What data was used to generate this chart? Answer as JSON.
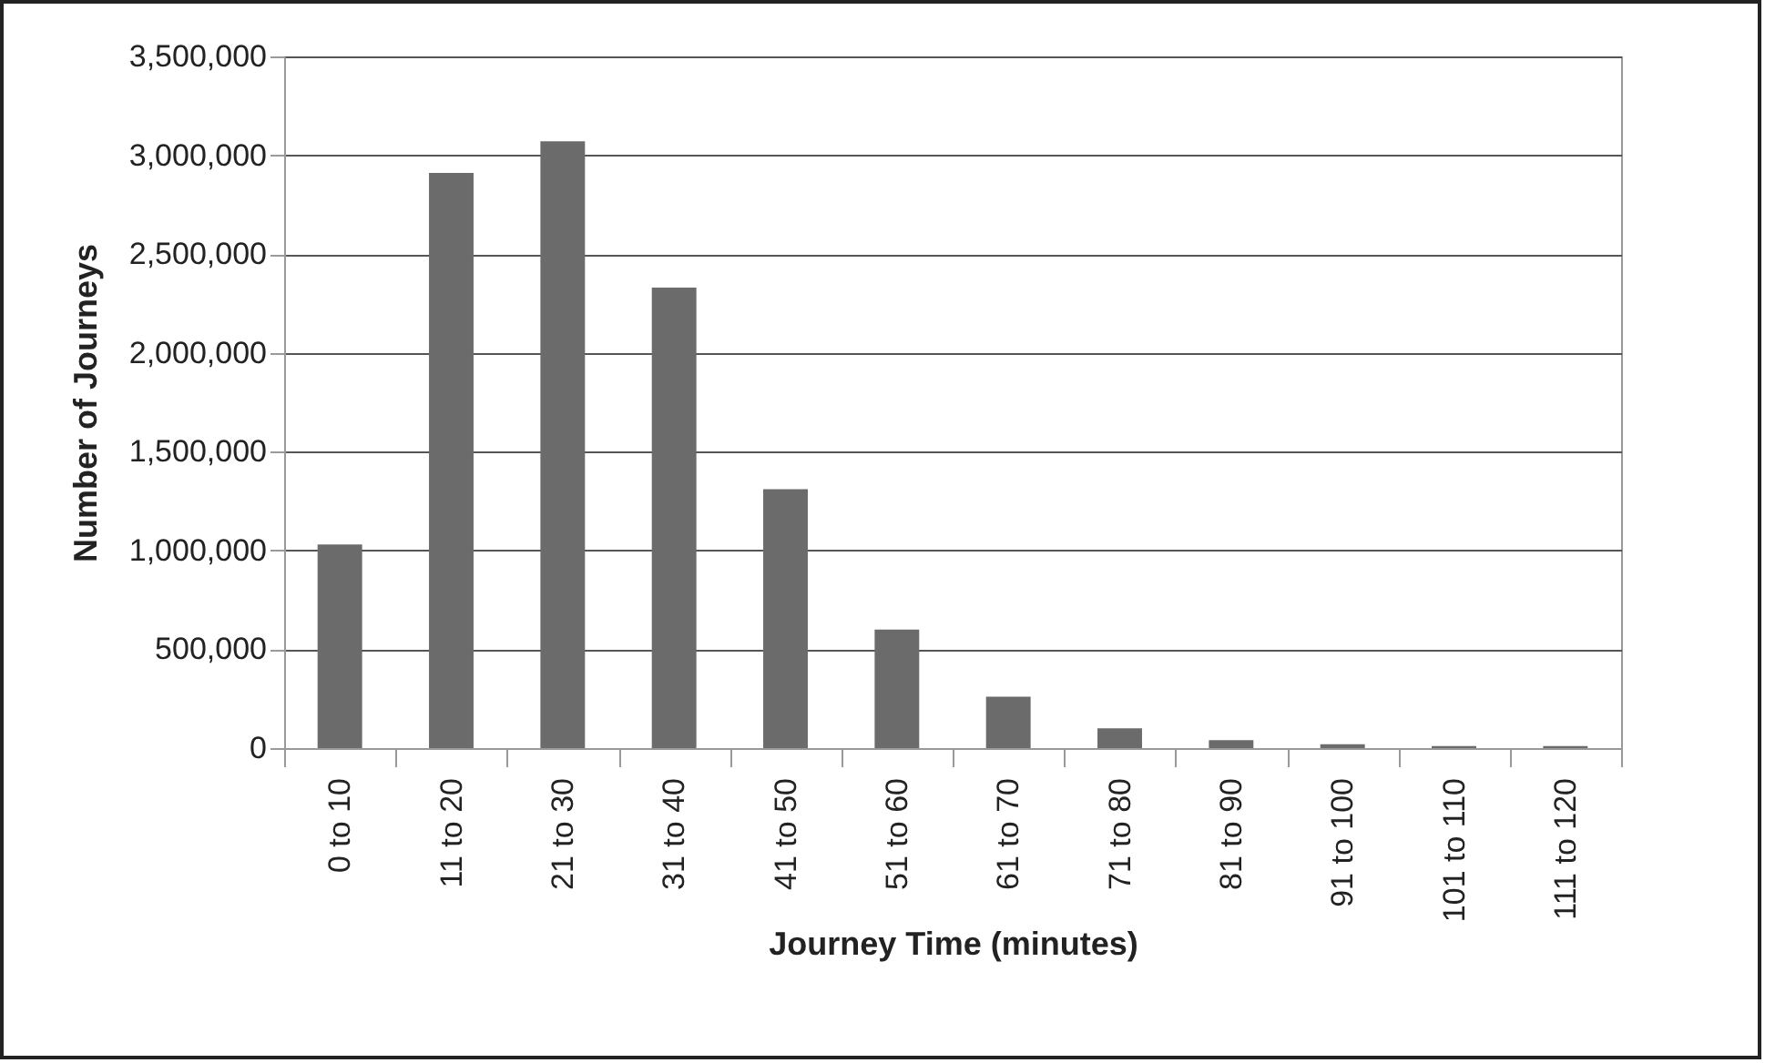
{
  "chart_data": {
    "type": "bar",
    "xlabel": "Journey Time (minutes)",
    "ylabel": "Number of Journeys",
    "categories": [
      "0 to 10",
      "11 to 20",
      "21 to 30",
      "31 to 40",
      "41 to 50",
      "51 to 60",
      "61 to 70",
      "71 to 80",
      "81 to 90",
      "91 to 100",
      "101 to 110",
      "111 to 120"
    ],
    "values": [
      1030000,
      2910000,
      3070000,
      2330000,
      1310000,
      600000,
      260000,
      100000,
      40000,
      20000,
      10000,
      10000
    ],
    "color": "#6b6b6b",
    "ylim": [
      0,
      3500000
    ],
    "yticks": [
      0,
      {
        "value": 500000,
        "label": "500,000"
      },
      {
        "value": 1000000,
        "label": "1,000,000"
      },
      {
        "value": 1500000,
        "label": "1,500,000"
      },
      {
        "value": 2000000,
        "label": "2,000,000"
      },
      {
        "value": 2500000,
        "label": "2,500,000"
      },
      {
        "value": 3000000,
        "label": "3,000,000"
      },
      {
        "value": 3500000,
        "label": "3,500,000"
      }
    ],
    "grid": "y"
  }
}
